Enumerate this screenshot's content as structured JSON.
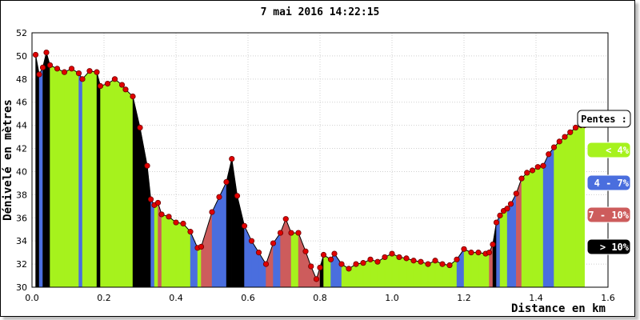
{
  "chart_data": {
    "type": "area",
    "title": "7 mai 2016 14:22:15",
    "xlabel": "Distance en km",
    "ylabel": "Dénivelé en mètres",
    "xlim": [
      0,
      1.6
    ],
    "ylim": [
      30,
      52
    ],
    "x_ticks": [
      "0.0",
      "0.2",
      "0.4",
      "0.6",
      "0.8",
      "1.0",
      "1.2",
      "1.4",
      "1.6"
    ],
    "y_ticks": [
      "30",
      "32",
      "34",
      "36",
      "38",
      "40",
      "42",
      "44",
      "46",
      "48",
      "50",
      "52"
    ],
    "grid": true,
    "legend": {
      "title": "Pentes :",
      "placement": "right",
      "entries": [
        {
          "label": "< 4%",
          "color": "#a6f21d",
          "text_color": "#ffffff"
        },
        {
          "label": "4 - 7%",
          "color": "#4a6ede",
          "text_color": "#ffffff"
        },
        {
          "label": "7 - 10%",
          "color": "#cd5c5c",
          "text_color": "#ffffff"
        },
        {
          "label": "> 10%",
          "color": "#000000",
          "text_color": "#ffffff"
        }
      ]
    },
    "series": [
      {
        "points": [
          [
            0.01,
            50.1
          ],
          [
            0.02,
            48.4
          ],
          [
            0.03,
            49.0
          ],
          [
            0.04,
            50.3
          ],
          [
            0.05,
            49.2
          ],
          [
            0.07,
            48.9
          ],
          [
            0.09,
            48.6
          ],
          [
            0.11,
            48.9
          ],
          [
            0.13,
            48.5
          ],
          [
            0.14,
            48.0
          ],
          [
            0.16,
            48.7
          ],
          [
            0.18,
            48.6
          ],
          [
            0.19,
            47.4
          ],
          [
            0.21,
            47.6
          ],
          [
            0.23,
            48.0
          ],
          [
            0.25,
            47.5
          ],
          [
            0.26,
            47.1
          ],
          [
            0.28,
            46.5
          ],
          [
            0.3,
            43.8
          ],
          [
            0.32,
            40.5
          ],
          [
            0.33,
            37.6
          ],
          [
            0.34,
            37.1
          ],
          [
            0.35,
            37.3
          ],
          [
            0.36,
            36.3
          ],
          [
            0.38,
            36.1
          ],
          [
            0.4,
            35.6
          ],
          [
            0.42,
            35.5
          ],
          [
            0.44,
            34.8
          ],
          [
            0.46,
            33.4
          ],
          [
            0.47,
            33.5
          ],
          [
            0.5,
            36.5
          ],
          [
            0.52,
            37.8
          ],
          [
            0.54,
            39.1
          ],
          [
            0.555,
            41.1
          ],
          [
            0.57,
            37.9
          ],
          [
            0.59,
            35.3
          ],
          [
            0.61,
            34.0
          ],
          [
            0.63,
            33.0
          ],
          [
            0.65,
            32.0
          ],
          [
            0.67,
            33.8
          ],
          [
            0.69,
            34.7
          ],
          [
            0.705,
            35.9
          ],
          [
            0.72,
            34.7
          ],
          [
            0.74,
            34.7
          ],
          [
            0.76,
            33.1
          ],
          [
            0.775,
            31.8
          ],
          [
            0.79,
            30.7
          ],
          [
            0.8,
            31.7
          ],
          [
            0.81,
            32.8
          ],
          [
            0.83,
            32.4
          ],
          [
            0.84,
            32.9
          ],
          [
            0.86,
            32.0
          ],
          [
            0.88,
            31.6
          ],
          [
            0.9,
            32.0
          ],
          [
            0.92,
            32.1
          ],
          [
            0.94,
            32.4
          ],
          [
            0.96,
            32.2
          ],
          [
            0.98,
            32.6
          ],
          [
            1.0,
            32.9
          ],
          [
            1.02,
            32.6
          ],
          [
            1.04,
            32.5
          ],
          [
            1.06,
            32.3
          ],
          [
            1.08,
            32.2
          ],
          [
            1.1,
            32.0
          ],
          [
            1.12,
            32.3
          ],
          [
            1.14,
            32.0
          ],
          [
            1.16,
            31.9
          ],
          [
            1.18,
            32.4
          ],
          [
            1.2,
            33.3
          ],
          [
            1.22,
            33.0
          ],
          [
            1.24,
            33.0
          ],
          [
            1.26,
            32.9
          ],
          [
            1.27,
            33.0
          ],
          [
            1.28,
            33.7
          ],
          [
            1.29,
            35.6
          ],
          [
            1.3,
            36.2
          ],
          [
            1.31,
            36.6
          ],
          [
            1.32,
            36.8
          ],
          [
            1.33,
            37.2
          ],
          [
            1.345,
            38.1
          ],
          [
            1.36,
            39.4
          ],
          [
            1.375,
            39.9
          ],
          [
            1.39,
            40.1
          ],
          [
            1.405,
            40.4
          ],
          [
            1.42,
            40.5
          ],
          [
            1.435,
            41.5
          ],
          [
            1.45,
            42.1
          ],
          [
            1.465,
            42.6
          ],
          [
            1.48,
            43.0
          ],
          [
            1.495,
            43.4
          ],
          [
            1.51,
            43.8
          ],
          [
            1.525,
            44.0
          ],
          [
            1.535,
            44.0
          ]
        ]
      }
    ]
  }
}
